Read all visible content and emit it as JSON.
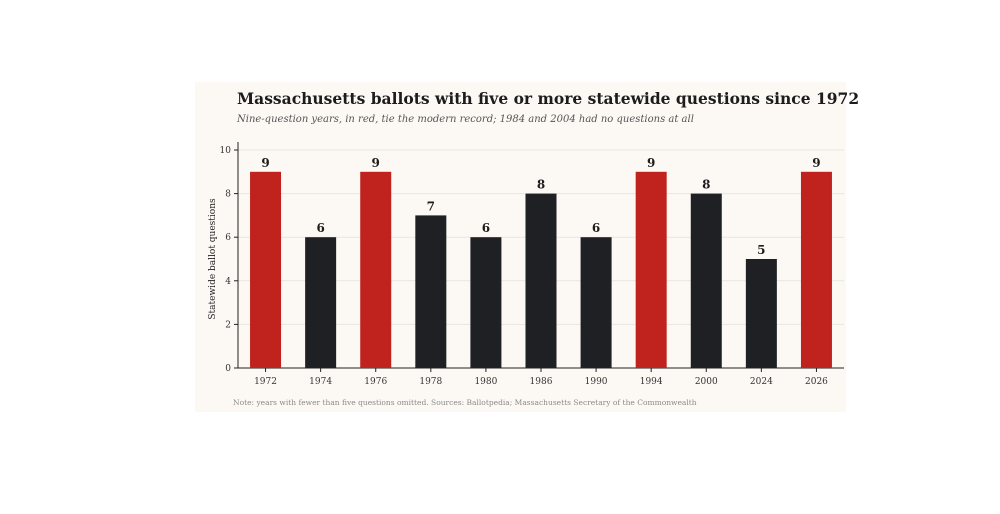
{
  "chart_data": {
    "type": "bar",
    "title": "Massachusetts ballots with five or more statewide questions since 1972",
    "subtitle": "Nine-question years, in red, tie the modern record; 1984 and 2004 had no questions at all",
    "ylabel": "Statewide ballot questions",
    "xlabel": "",
    "ylim": [
      0,
      10
    ],
    "yticks": [
      0,
      2,
      4,
      6,
      8,
      10
    ],
    "grid": true,
    "categories": [
      "1972",
      "1974",
      "1976",
      "1978",
      "1980",
      "1986",
      "1990",
      "1994",
      "2000",
      "2024",
      "2026"
    ],
    "values": [
      9,
      6,
      9,
      7,
      6,
      8,
      6,
      9,
      8,
      5,
      9
    ],
    "highlight_value": 9,
    "colors": {
      "highlight": "#c0221e",
      "default": "#1f2024",
      "grid": "#e9e4de",
      "axis": "#222222"
    },
    "note": "Note: years with fewer than five questions omitted. Sources: Ballotpedia; Massachusetts Secretary of the Commonwealth"
  }
}
